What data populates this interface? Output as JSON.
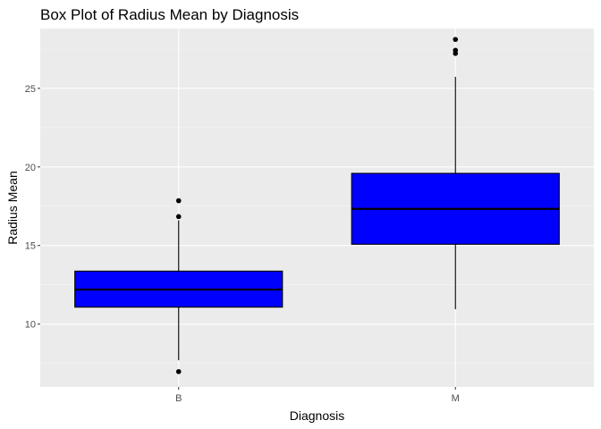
{
  "chart_data": {
    "type": "box",
    "title": "Box Plot of Radius Mean by Diagnosis",
    "xlabel": "Diagnosis",
    "ylabel": "Radius Mean",
    "categories": [
      "B",
      "M"
    ],
    "ylim": [
      6.0,
      28.8
    ],
    "yticks": [
      10,
      15,
      20,
      25
    ],
    "grid": true,
    "legend": "none",
    "colors": {
      "box_fill": "#0000ff",
      "box_line": "#000000",
      "panel_bg": "#ebebeb",
      "grid_major": "#ffffff",
      "grid_minor": "#f5f5f5",
      "tick_label": "#4d4d4d"
    },
    "boxes": [
      {
        "category": "B",
        "whisker_low": 7.7,
        "q1": 11.08,
        "median": 12.2,
        "q3": 13.37,
        "whisker_high": 16.6,
        "outliers": [
          6.98,
          16.84,
          17.85
        ]
      },
      {
        "category": "M",
        "whisker_low": 10.95,
        "q1": 15.08,
        "median": 17.33,
        "q3": 19.59,
        "whisker_high": 25.73,
        "outliers": [
          27.22,
          27.42,
          28.11
        ]
      }
    ]
  }
}
